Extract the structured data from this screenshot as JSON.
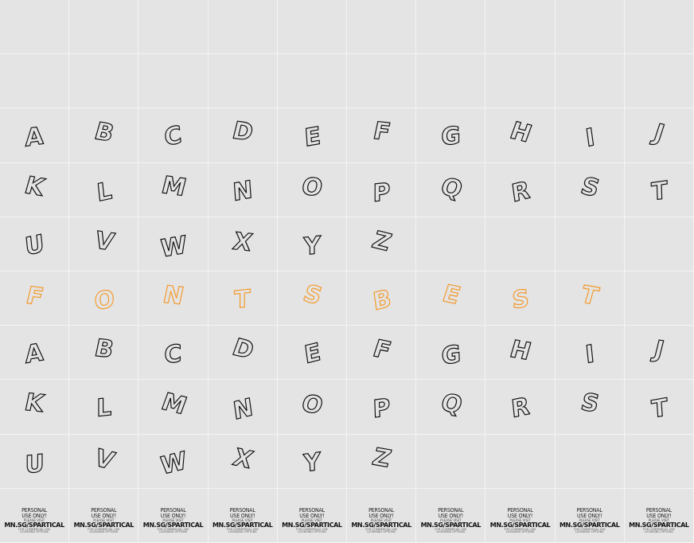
{
  "rows": [
    {
      "cells": [
        "",
        "",
        "",
        "",
        "",
        "",
        "",
        "",
        "",
        ""
      ],
      "accent": false
    },
    {
      "cells": [
        "",
        "",
        "",
        "",
        "",
        "",
        "",
        "",
        "",
        ""
      ],
      "accent": false
    },
    {
      "cells": [
        "A",
        "B",
        "C",
        "D",
        "E",
        "F",
        "G",
        "H",
        "I",
        "J"
      ],
      "accent": false
    },
    {
      "cells": [
        "K",
        "L",
        "M",
        "N",
        "O",
        "P",
        "Q",
        "R",
        "S",
        "T"
      ],
      "accent": false
    },
    {
      "cells": [
        "U",
        "V",
        "W",
        "X",
        "Y",
        "Z",
        "",
        "",
        "",
        ""
      ],
      "accent": false
    },
    {
      "cells": [
        "F",
        "O",
        "N",
        "T",
        "S",
        "B",
        "E",
        "S",
        "T",
        ""
      ],
      "accent": true
    },
    {
      "cells": [
        "A",
        "B",
        "C",
        "D",
        "E",
        "F",
        "G",
        "H",
        "I",
        "J"
      ],
      "accent": false
    },
    {
      "cells": [
        "K",
        "L",
        "M",
        "N",
        "O",
        "P",
        "Q",
        "R",
        "S",
        "T"
      ],
      "accent": false
    },
    {
      "cells": [
        "U",
        "V",
        "W",
        "X",
        "Y",
        "Z",
        "",
        "",
        "",
        ""
      ],
      "accent": false
    }
  ],
  "notice": {
    "line1": "PERSONAL",
    "line2": "USE ONLY!",
    "line3": "PLEASE VISIT",
    "line4": "MN.SG/SPARTICAL",
    "line5": "FOR COMMERCIAL USE",
    "line6": "LICENSING OPTIONS"
  },
  "colors": {
    "background": "#e4e4e4",
    "grid_line": "#f4f4f4",
    "glyph_outline": "#111111",
    "accent_outline": "#f39a2e"
  }
}
